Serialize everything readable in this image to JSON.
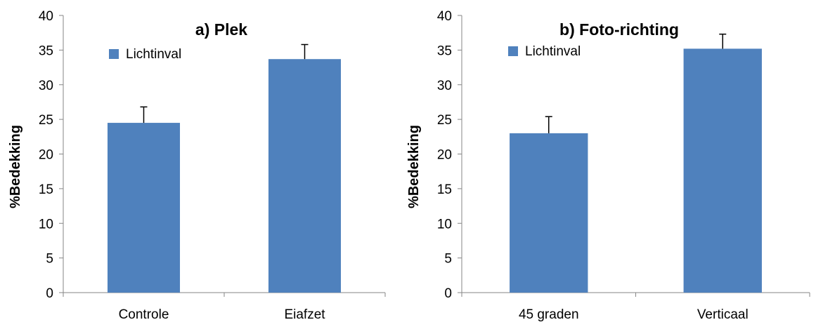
{
  "chart_data": [
    {
      "type": "bar",
      "title": "a) Plek",
      "xlabel": "",
      "ylabel": "%Bedekking",
      "ylim": [
        0,
        40
      ],
      "yticks": [
        "0",
        "5",
        "10",
        "15",
        "20",
        "25",
        "30",
        "35",
        "40"
      ],
      "categories": [
        "Controle",
        "Eiafzet"
      ],
      "series": [
        {
          "name": "Lichtinval",
          "values": [
            24.5,
            33.7
          ],
          "errors": [
            2.3,
            2.1
          ],
          "color": "#4f81bd"
        }
      ],
      "grid": false,
      "legend_position": "top-left"
    },
    {
      "type": "bar",
      "title": "b) Foto-richting",
      "xlabel": "",
      "ylabel": "%Bedekking",
      "ylim": [
        0,
        40
      ],
      "yticks": [
        "0",
        "5",
        "10",
        "15",
        "20",
        "25",
        "30",
        "35",
        "40"
      ],
      "categories": [
        "45 graden",
        "Verticaal"
      ],
      "series": [
        {
          "name": "Lichtinval",
          "values": [
            23.0,
            35.2
          ],
          "errors": [
            2.4,
            2.1
          ],
          "color": "#4f81bd"
        }
      ],
      "grid": false,
      "legend_position": "top-left"
    }
  ]
}
